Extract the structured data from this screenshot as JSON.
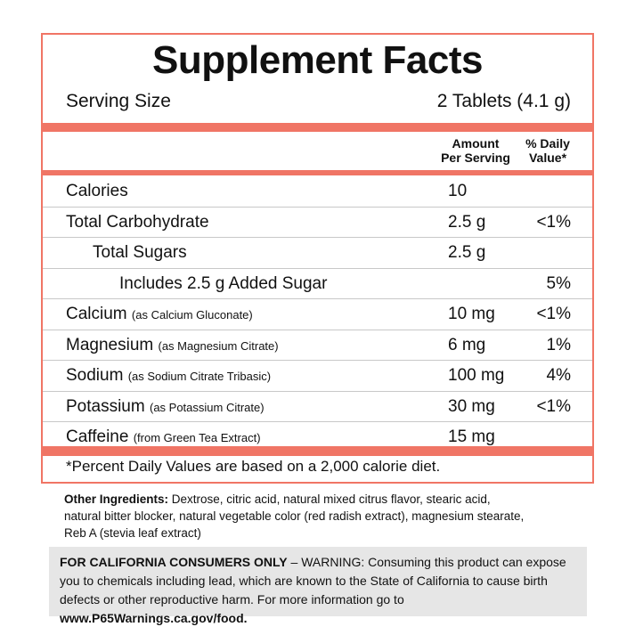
{
  "title": "Supplement Facts",
  "serving": {
    "label": "Serving Size",
    "value": "2 Tablets (4.1 g)"
  },
  "header": {
    "amount": [
      "Amount",
      "Per Serving"
    ],
    "daily_value": [
      "% Daily",
      "Value*"
    ]
  },
  "rows": [
    {
      "name": "Calories",
      "amount": "10"
    },
    {
      "name": "Total Carbohydrate",
      "amount": "2.5 g",
      "dv": "<1%"
    },
    {
      "name": "Total Sugars",
      "amount": "2.5 g"
    },
    {
      "name": "Includes 2.5 g Added Sugar",
      "dv": "5%"
    },
    {
      "name": "Calcium",
      "note": "(as Calcium Gluconate)",
      "amount": "10 mg",
      "dv": "<1%"
    },
    {
      "name": "Magnesium",
      "note": "(as Magnesium Citrate)",
      "amount": "6 mg",
      "dv": "1%"
    },
    {
      "name": "Sodium",
      "note": "(as Sodium Citrate Tribasic)",
      "amount": "100 mg",
      "dv": "4%"
    },
    {
      "name": "Potassium",
      "note": "(as Potassium Citrate)",
      "amount": "30 mg",
      "dv": "<1%"
    },
    {
      "name": "Caffeine",
      "note": "(from Green Tea Extract)",
      "amount": "15 mg"
    }
  ],
  "footnote": "*Percent Daily Values are based on a 2,000 calorie diet.",
  "other_ingredients": {
    "label": "Other Ingredients:",
    "text": "Dextrose, citric acid, natural mixed citrus flavor, stearic acid, natural bitter blocker, natural vegetable color (red radish extract), magnesium stearate, Reb A (stevia leaf extract)"
  },
  "warning": {
    "heading": "FOR CALIFORNIA CONSUMERS ONLY",
    "text": " – WARNING: Consuming this product can expose you to chemicals including lead, which are known to the State of California to cause birth defects or other reproductive harm. For more information go to ",
    "link": "www.P65Warnings.ca.gov/food."
  }
}
